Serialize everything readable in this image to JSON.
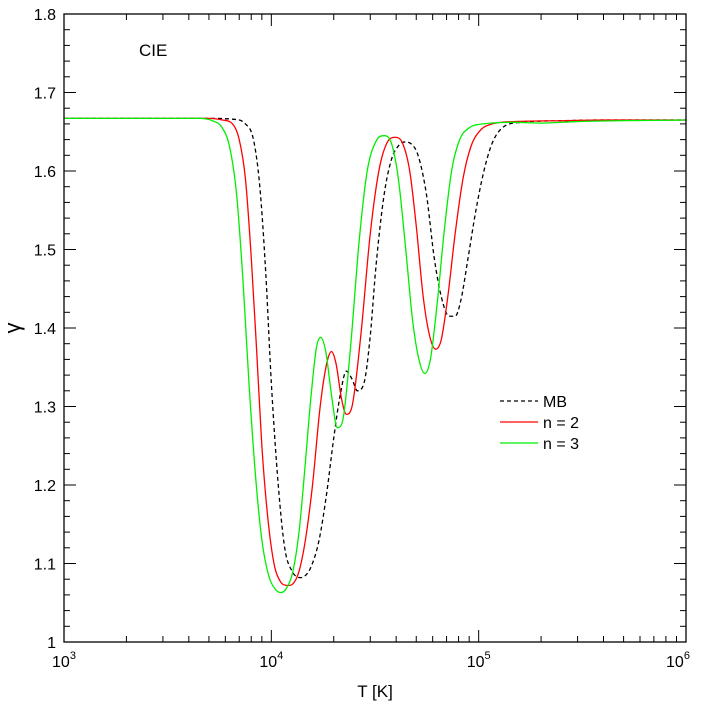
{
  "chart_data": {
    "type": "line",
    "annotation": "CIE",
    "xlabel": "T [K]",
    "ylabel": "γ",
    "xscale": "log",
    "xlim": [
      1000,
      1000000
    ],
    "ylim": [
      1.0,
      1.8
    ],
    "grid": false,
    "legend_position": "right",
    "x_ticks": [
      {
        "value": 1000,
        "base": "10",
        "exp": "3"
      },
      {
        "value": 10000,
        "base": "10",
        "exp": "4"
      },
      {
        "value": 100000,
        "base": "10",
        "exp": "5"
      },
      {
        "value": 1000000,
        "base": "10",
        "exp": "6"
      }
    ],
    "y_ticks": [
      {
        "value": 1.0,
        "label": "1"
      },
      {
        "value": 1.1,
        "label": "1.1"
      },
      {
        "value": 1.2,
        "label": "1.2"
      },
      {
        "value": 1.3,
        "label": "1.3"
      },
      {
        "value": 1.4,
        "label": "1.4"
      },
      {
        "value": 1.5,
        "label": "1.5"
      },
      {
        "value": 1.6,
        "label": "1.6"
      },
      {
        "value": 1.7,
        "label": "1.7"
      },
      {
        "value": 1.8,
        "label": "1.8"
      }
    ],
    "series": [
      {
        "name": "MB",
        "color": "#000000",
        "dashed": true,
        "points": [
          [
            1000,
            1.667
          ],
          [
            5000,
            1.667
          ],
          [
            6500,
            1.666
          ],
          [
            7500,
            1.66
          ],
          [
            8200,
            1.64
          ],
          [
            8800,
            1.58
          ],
          [
            9400,
            1.47
          ],
          [
            10000,
            1.33
          ],
          [
            10800,
            1.2
          ],
          [
            11600,
            1.12
          ],
          [
            12600,
            1.09
          ],
          [
            13800,
            1.082
          ],
          [
            14500,
            1.084
          ],
          [
            15500,
            1.095
          ],
          [
            17000,
            1.13
          ],
          [
            18500,
            1.19
          ],
          [
            20000,
            1.26
          ],
          [
            21500,
            1.315
          ],
          [
            23000,
            1.345
          ],
          [
            24500,
            1.335
          ],
          [
            26000,
            1.32
          ],
          [
            28000,
            1.33
          ],
          [
            30000,
            1.39
          ],
          [
            32000,
            1.48
          ],
          [
            35000,
            1.57
          ],
          [
            38000,
            1.615
          ],
          [
            41000,
            1.632
          ],
          [
            44000,
            1.637
          ],
          [
            47000,
            1.635
          ],
          [
            51000,
            1.62
          ],
          [
            56000,
            1.57
          ],
          [
            61000,
            1.49
          ],
          [
            66000,
            1.44
          ],
          [
            72000,
            1.415
          ],
          [
            77000,
            1.415
          ],
          [
            82000,
            1.435
          ],
          [
            89000,
            1.49
          ],
          [
            97000,
            1.55
          ],
          [
            106000,
            1.6
          ],
          [
            116000,
            1.635
          ],
          [
            130000,
            1.655
          ],
          [
            160000,
            1.662
          ],
          [
            250000,
            1.664
          ],
          [
            400000,
            1.665
          ],
          [
            1000000,
            1.665
          ]
        ]
      },
      {
        "name": "n = 2",
        "color": "#ff0000",
        "dashed": false,
        "points": [
          [
            1000,
            1.667
          ],
          [
            5000,
            1.667
          ],
          [
            5800,
            1.665
          ],
          [
            6500,
            1.66
          ],
          [
            7000,
            1.64
          ],
          [
            7500,
            1.59
          ],
          [
            8000,
            1.49
          ],
          [
            8500,
            1.37
          ],
          [
            9000,
            1.25
          ],
          [
            9600,
            1.16
          ],
          [
            10300,
            1.1
          ],
          [
            11000,
            1.078
          ],
          [
            12000,
            1.072
          ],
          [
            12800,
            1.075
          ],
          [
            13600,
            1.09
          ],
          [
            14600,
            1.13
          ],
          [
            15800,
            1.2
          ],
          [
            17200,
            1.3
          ],
          [
            18500,
            1.355
          ],
          [
            19500,
            1.37
          ],
          [
            20500,
            1.355
          ],
          [
            21800,
            1.31
          ],
          [
            23000,
            1.29
          ],
          [
            24500,
            1.3
          ],
          [
            27000,
            1.39
          ],
          [
            30000,
            1.52
          ],
          [
            33000,
            1.6
          ],
          [
            36000,
            1.635
          ],
          [
            39500,
            1.643
          ],
          [
            43000,
            1.635
          ],
          [
            46500,
            1.6
          ],
          [
            50000,
            1.53
          ],
          [
            54000,
            1.44
          ],
          [
            58000,
            1.39
          ],
          [
            62000,
            1.373
          ],
          [
            66000,
            1.385
          ],
          [
            71000,
            1.44
          ],
          [
            77000,
            1.52
          ],
          [
            84000,
            1.59
          ],
          [
            92000,
            1.632
          ],
          [
            102000,
            1.652
          ],
          [
            116000,
            1.66
          ],
          [
            150000,
            1.663
          ],
          [
            250000,
            1.664
          ],
          [
            400000,
            1.665
          ],
          [
            1000000,
            1.665
          ]
        ]
      },
      {
        "name": "n = 3",
        "color": "#00ee00",
        "dashed": false,
        "points": [
          [
            1000,
            1.667
          ],
          [
            4500,
            1.667
          ],
          [
            5200,
            1.664
          ],
          [
            5800,
            1.655
          ],
          [
            6300,
            1.63
          ],
          [
            6800,
            1.57
          ],
          [
            7300,
            1.46
          ],
          [
            7800,
            1.33
          ],
          [
            8400,
            1.21
          ],
          [
            9000,
            1.13
          ],
          [
            9700,
            1.085
          ],
          [
            10400,
            1.068
          ],
          [
            11100,
            1.063
          ],
          [
            11800,
            1.068
          ],
          [
            12700,
            1.09
          ],
          [
            13600,
            1.14
          ],
          [
            14500,
            1.22
          ],
          [
            15500,
            1.31
          ],
          [
            16500,
            1.375
          ],
          [
            17300,
            1.388
          ],
          [
            18300,
            1.37
          ],
          [
            19500,
            1.315
          ],
          [
            20800,
            1.273
          ],
          [
            22000,
            1.28
          ],
          [
            24000,
            1.37
          ],
          [
            26500,
            1.51
          ],
          [
            29000,
            1.6
          ],
          [
            32000,
            1.638
          ],
          [
            35000,
            1.645
          ],
          [
            38000,
            1.635
          ],
          [
            41000,
            1.59
          ],
          [
            44500,
            1.5
          ],
          [
            48000,
            1.41
          ],
          [
            51500,
            1.36
          ],
          [
            55000,
            1.342
          ],
          [
            58500,
            1.36
          ],
          [
            63000,
            1.43
          ],
          [
            68000,
            1.52
          ],
          [
            74000,
            1.6
          ],
          [
            81000,
            1.64
          ],
          [
            90000,
            1.655
          ],
          [
            105000,
            1.66
          ],
          [
            150000,
            1.662
          ],
          [
            200000,
            1.661
          ],
          [
            300000,
            1.663
          ],
          [
            1000000,
            1.665
          ]
        ]
      }
    ]
  }
}
